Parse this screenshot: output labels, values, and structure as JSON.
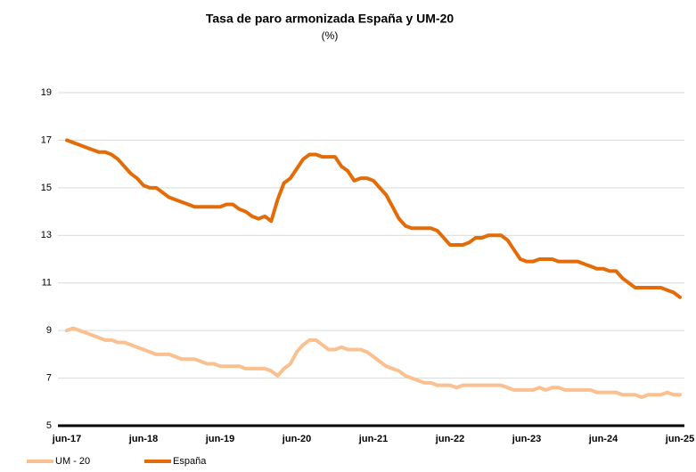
{
  "chart_data": {
    "type": "line",
    "title": "Tasa de paro armonizada España y UM-20",
    "subtitle": "(%)",
    "categories": [
      "jun-17",
      null,
      null,
      null,
      null,
      null,
      null,
      null,
      null,
      null,
      null,
      null,
      "jun-18",
      null,
      null,
      null,
      null,
      null,
      null,
      null,
      null,
      null,
      null,
      null,
      "jun-19",
      null,
      null,
      null,
      null,
      null,
      null,
      null,
      null,
      null,
      null,
      null,
      "jun-20",
      null,
      null,
      null,
      null,
      null,
      null,
      null,
      null,
      null,
      null,
      null,
      "jun-21",
      null,
      null,
      null,
      null,
      null,
      null,
      null,
      null,
      null,
      null,
      null,
      "jun-22",
      null,
      null,
      null,
      null,
      null,
      null,
      null,
      null,
      null,
      null,
      null,
      "jun-23",
      null,
      null,
      null,
      null,
      null,
      null,
      null,
      null,
      null,
      null,
      null,
      "jun-24",
      null,
      null,
      null,
      null,
      null,
      null,
      null,
      null,
      null,
      null,
      null,
      "jun-25"
    ],
    "series": [
      {
        "name": "UM - 20",
        "color": "#fac090",
        "values": [
          9.0,
          9.1,
          9.0,
          8.9,
          8.8,
          8.7,
          8.6,
          8.6,
          8.5,
          8.5,
          8.4,
          8.3,
          8.2,
          8.1,
          8.0,
          8.0,
          8.0,
          7.9,
          7.8,
          7.8,
          7.8,
          7.7,
          7.6,
          7.6,
          7.5,
          7.5,
          7.5,
          7.5,
          7.4,
          7.4,
          7.4,
          7.4,
          7.3,
          7.1,
          7.4,
          7.6,
          8.1,
          8.4,
          8.6,
          8.6,
          8.4,
          8.2,
          8.2,
          8.3,
          8.2,
          8.2,
          8.2,
          8.1,
          7.9,
          7.7,
          7.5,
          7.4,
          7.3,
          7.1,
          7.0,
          6.9,
          6.8,
          6.8,
          6.7,
          6.7,
          6.7,
          6.6,
          6.7,
          6.7,
          6.7,
          6.7,
          6.7,
          6.7,
          6.7,
          6.6,
          6.5,
          6.5,
          6.5,
          6.5,
          6.6,
          6.5,
          6.6,
          6.6,
          6.5,
          6.5,
          6.5,
          6.5,
          6.5,
          6.4,
          6.4,
          6.4,
          6.4,
          6.3,
          6.3,
          6.3,
          6.2,
          6.3,
          6.3,
          6.3,
          6.4,
          6.3,
          6.3
        ]
      },
      {
        "name": "España",
        "color": "#e36c09",
        "values": [
          17.0,
          16.9,
          16.8,
          16.7,
          16.6,
          16.5,
          16.5,
          16.4,
          16.2,
          15.9,
          15.6,
          15.4,
          15.1,
          15.0,
          15.0,
          14.8,
          14.6,
          14.5,
          14.4,
          14.3,
          14.2,
          14.2,
          14.2,
          14.2,
          14.2,
          14.3,
          14.3,
          14.1,
          14.0,
          13.8,
          13.7,
          13.8,
          13.6,
          14.5,
          15.2,
          15.4,
          15.8,
          16.2,
          16.4,
          16.4,
          16.3,
          16.3,
          16.3,
          15.9,
          15.7,
          15.3,
          15.4,
          15.4,
          15.3,
          15.0,
          14.7,
          14.2,
          13.7,
          13.4,
          13.3,
          13.3,
          13.3,
          13.3,
          13.2,
          12.9,
          12.6,
          12.6,
          12.6,
          12.7,
          12.9,
          12.9,
          13.0,
          13.0,
          13.0,
          12.8,
          12.4,
          12.0,
          11.9,
          11.9,
          12.0,
          12.0,
          12.0,
          11.9,
          11.9,
          11.9,
          11.9,
          11.8,
          11.7,
          11.6,
          11.6,
          11.5,
          11.5,
          11.2,
          11.0,
          10.8,
          10.8,
          10.8,
          10.8,
          10.8,
          10.7,
          10.6,
          10.4
        ]
      }
    ],
    "ylim": [
      5,
      19
    ],
    "yticks": [
      5,
      7,
      9,
      11,
      13,
      15,
      17,
      19
    ],
    "grid": true,
    "legend": "bottom-left"
  }
}
